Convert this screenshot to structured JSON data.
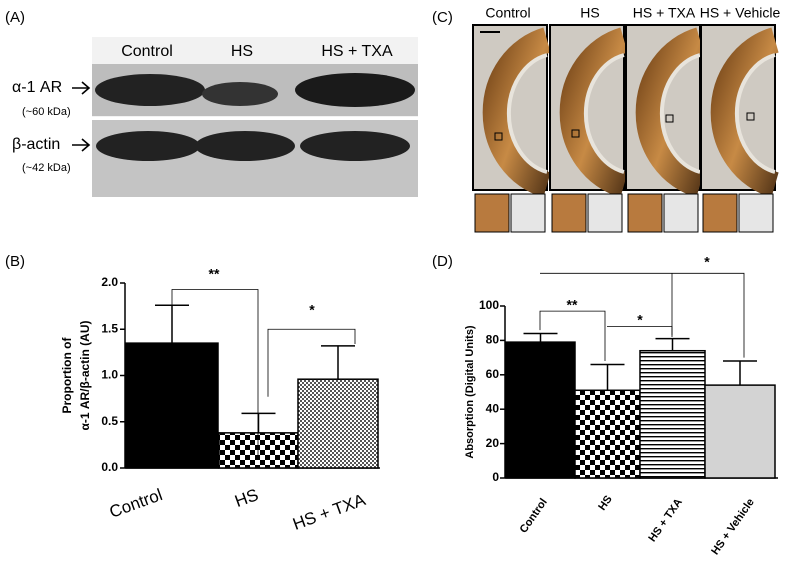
{
  "blot": {
    "panel_label": "(A)",
    "lanes": [
      "Control",
      "HS",
      "HS + TXA"
    ],
    "rows": [
      {
        "name": "α-1 AR",
        "size": "(~60 kDa)"
      },
      {
        "name": "β-actin",
        "size": "(~42 kDa)"
      }
    ]
  },
  "micrographs": {
    "panel_label": "(C)",
    "columns": [
      "Control",
      "HS",
      "HS + TXA",
      "HS + Vehicle"
    ]
  },
  "chart_data": [
    {
      "type": "bar",
      "panel_label": "(B)",
      "ylabel": [
        "Proportion of",
        "α-1 AR/β-actin (AU)"
      ],
      "categories": [
        "Control",
        "HS",
        "HS + TXA"
      ],
      "values": [
        1.35,
        0.38,
        0.96
      ],
      "errors": [
        0.41,
        0.21,
        0.36
      ],
      "ylim": [
        0,
        2
      ],
      "yticks": [
        {
          "value": 0,
          "label": "0.0"
        },
        {
          "value": 0.5,
          "label": "0.5"
        },
        {
          "value": 1,
          "label": "1.0"
        },
        {
          "value": 1.5,
          "label": "1.5"
        },
        {
          "value": 2,
          "label": "2.0"
        }
      ],
      "annotations": [
        "**",
        "*"
      ]
    },
    {
      "type": "bar",
      "panel_label": "(D)",
      "ylabel": [
        "Absorption (Digital Units)"
      ],
      "categories": [
        "Control",
        "HS",
        "HS + TXA",
        "HS + Vehicle"
      ],
      "values": [
        79,
        51,
        74,
        54
      ],
      "errors": [
        5,
        15,
        7,
        14
      ],
      "ylim": [
        0,
        100
      ],
      "yticks": [
        0,
        20,
        40,
        60,
        80,
        100
      ],
      "annotations": [
        "**",
        "*",
        "*"
      ]
    }
  ]
}
